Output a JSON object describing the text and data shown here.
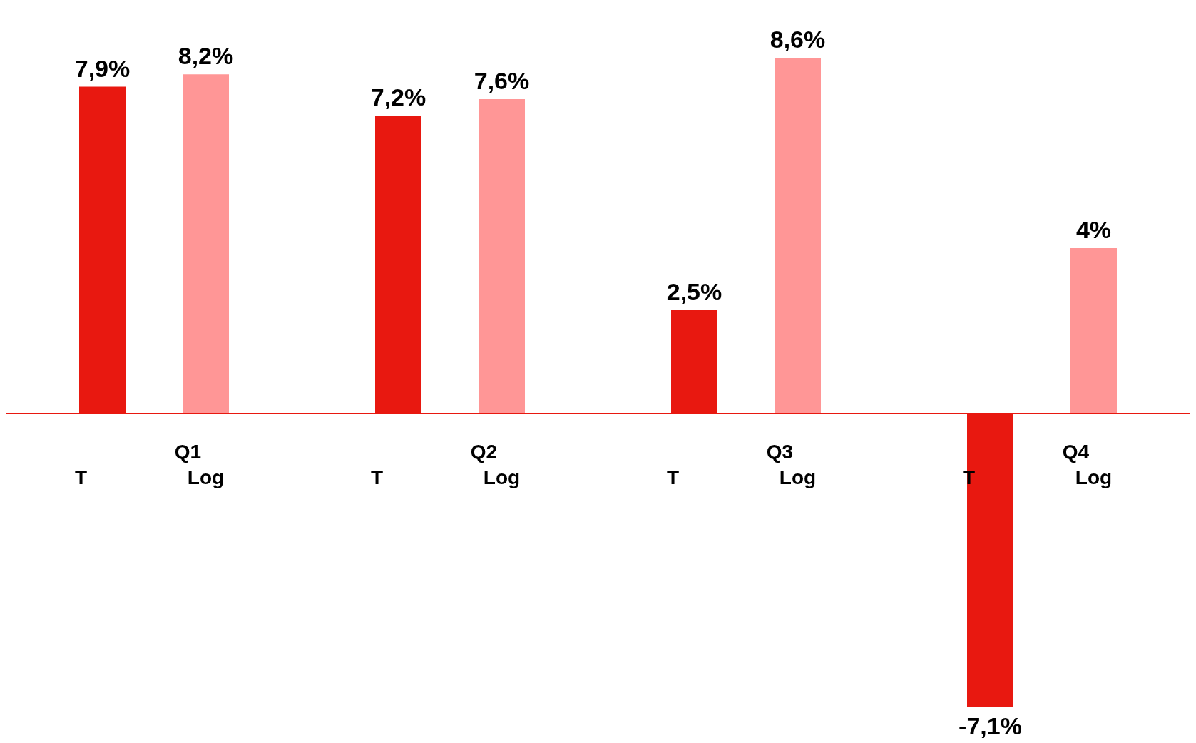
{
  "chart_data": {
    "type": "bar",
    "categories": [
      "Q1",
      "Q2",
      "Q3",
      "Q4"
    ],
    "series": [
      {
        "name": "T",
        "color": "#e81810",
        "values": [
          7.9,
          7.2,
          2.5,
          -7.1
        ],
        "value_labels": [
          "7,9%",
          "7,2%",
          "2,5%",
          "-7,1%"
        ]
      },
      {
        "name": "Log",
        "color": "#ff9696",
        "values": [
          8.2,
          7.6,
          8.6,
          4
        ],
        "value_labels": [
          "8,2%",
          "7,6%",
          "8,6%",
          "4%"
        ]
      }
    ]
  }
}
